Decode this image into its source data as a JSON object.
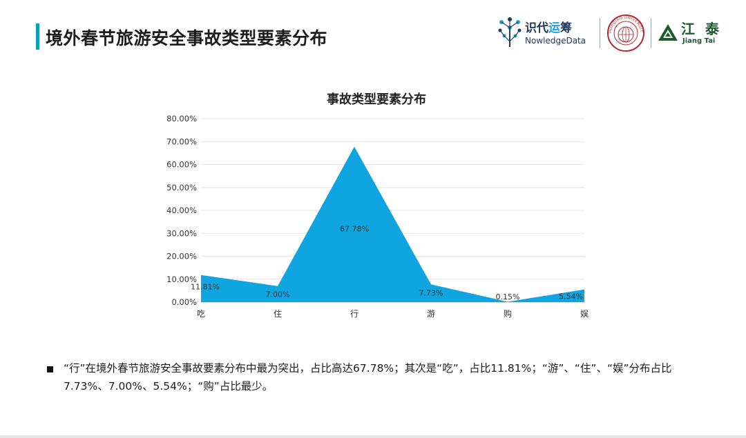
{
  "header": {
    "title": "境外春节旅游安全事故类型要素分布",
    "accent_color": "#0f9fb3"
  },
  "logos": {
    "zhidai_cn_1": "识代",
    "zhidai_cn_2": "运",
    "zhidai_cn_3": "筹",
    "zhidai_en": "NowledgeData",
    "university_name": "HUAQIAO UNIVERSITY",
    "jiangtai_cn": "江 泰",
    "jiangtai_en": "Jiang Tai"
  },
  "chart_data": {
    "type": "area",
    "title": "事故类型要素分布",
    "categories": [
      "吃",
      "住",
      "行",
      "游",
      "购",
      "娱"
    ],
    "values": [
      11.81,
      7.0,
      67.78,
      7.73,
      0.15,
      5.54
    ],
    "data_labels": [
      "11.81%",
      "7.00%",
      "67.78%",
      "7.73%",
      "0.15%",
      "5.54%"
    ],
    "yticks": [
      "0.00%",
      "10.00%",
      "20.00%",
      "30.00%",
      "40.00%",
      "50.00%",
      "60.00%",
      "70.00%",
      "80.00%"
    ],
    "ylim": [
      0,
      80
    ],
    "grid": true,
    "fill_color": "#0ea5e0",
    "xlabel": "",
    "ylabel": ""
  },
  "summary": {
    "text": "“行”在境外春节旅游安全事故要素分布中最为突出，占比高达67.78%；其次是“吃”，占比11.81%；“游”、“住”、“娱”分布占比7.73%、7.00%、5.54%；“购”占比最少。"
  }
}
